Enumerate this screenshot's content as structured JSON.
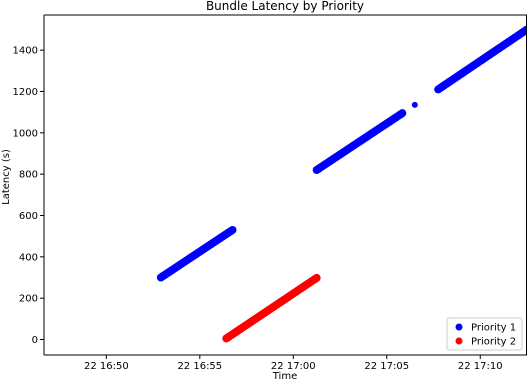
{
  "chart_data": {
    "type": "scatter",
    "title": "Bundle Latency by Priority",
    "xlabel": "Time",
    "ylabel": "Latency (s)",
    "x_ticks": [
      "22 16:50",
      "22 16:55",
      "22 17:00",
      "22 17:05",
      "22 17:10"
    ],
    "y_ticks": [
      "0",
      "200",
      "400",
      "600",
      "800",
      "1000",
      "1200",
      "1400"
    ],
    "xlim": [
      "2022-11-22 16:46:40",
      "2022-11-22 17:12:30"
    ],
    "ylim": [
      -75,
      1570
    ],
    "grid": false,
    "legend_position": "bottom-right",
    "series": [
      {
        "name": "Priority 1",
        "color": "#0000ff",
        "segments": [
          {
            "x_start": "2022-11-22 16:52:55",
            "x_end": "2022-11-22 16:56:45",
            "y_start": 300,
            "y_end": 530
          },
          {
            "x_start": "2022-11-22 17:01:15",
            "x_end": "2022-11-22 17:05:50",
            "y_start": 820,
            "y_end": 1095
          },
          {
            "x_start": "2022-11-22 17:07:45",
            "x_end": "2022-11-22 17:12:30",
            "y_start": 1210,
            "y_end": 1500
          }
        ],
        "points": [
          {
            "x": "2022-11-22 17:06:30",
            "y": 1135
          }
        ]
      },
      {
        "name": "Priority 2",
        "color": "#ff0000",
        "segments": [
          {
            "x_start": "2022-11-22 16:56:25",
            "x_end": "2022-11-22 17:01:15",
            "y_start": 5,
            "y_end": 298
          }
        ],
        "points": []
      }
    ]
  }
}
